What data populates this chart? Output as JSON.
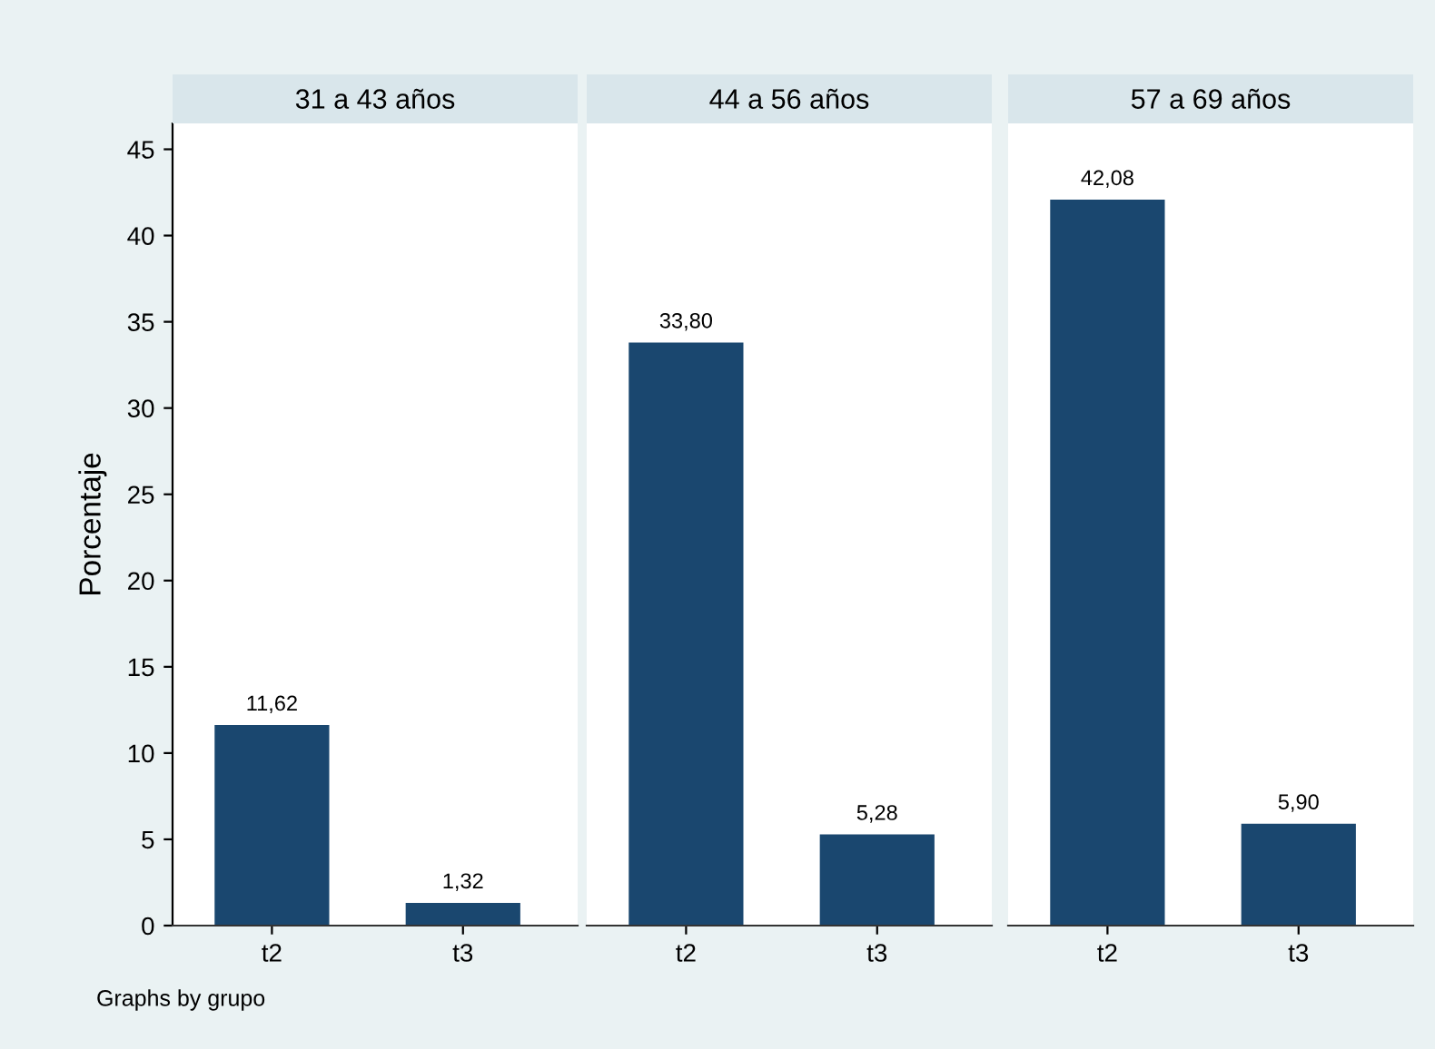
{
  "chart_data": [
    {
      "type": "bar",
      "title": "31 a 43 años",
      "ylabel": "Porcentaje",
      "categories": [
        "t2",
        "t3"
      ],
      "series": [
        {
          "color": "#1a476f",
          "values": [
            11.62,
            1.32
          ],
          "value_labels": [
            "11,62",
            "1,32"
          ]
        }
      ],
      "ylim": [
        0,
        46.5
      ],
      "yticks": [
        0,
        5,
        10,
        15,
        20,
        25,
        30,
        35,
        40,
        45
      ],
      "grid": false,
      "legend": false,
      "annotations": [
        "Graphs by grupo"
      ]
    },
    {
      "type": "bar",
      "title": "44 a 56 años",
      "categories": [
        "t2",
        "t3"
      ],
      "series": [
        {
          "color": "#1a476f",
          "values": [
            33.8,
            5.28
          ],
          "value_labels": [
            "33,80",
            "5,28"
          ]
        }
      ],
      "ylim": [
        0,
        46.5
      ],
      "yticks": [
        0,
        5,
        10,
        15,
        20,
        25,
        30,
        35,
        40,
        45
      ],
      "tick_labels": "x",
      "grid": false,
      "legend": false
    },
    {
      "type": "bar",
      "title": "57 a 69 años",
      "categories": [
        "t2",
        "t3"
      ],
      "series": [
        {
          "color": "#1a476f",
          "values": [
            42.08,
            5.9
          ],
          "value_labels": [
            "42,08",
            "5,90"
          ]
        }
      ],
      "ylim": [
        0,
        46.5
      ],
      "yticks": [
        0,
        5,
        10,
        15,
        20,
        25,
        30,
        35,
        40,
        45
      ],
      "tick_labels": "x",
      "grid": false,
      "legend": false
    }
  ]
}
